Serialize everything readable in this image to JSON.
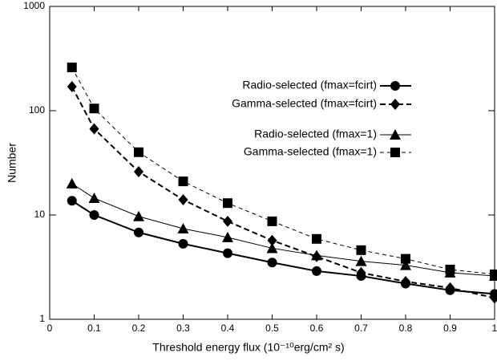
{
  "chart_data": {
    "type": "line",
    "x_label": "Threshold energy flux (10⁻¹⁰erg/cm² s)",
    "y_label": "Number",
    "x": [
      0.05,
      0.1,
      0.2,
      0.3,
      0.4,
      0.5,
      0.6,
      0.7,
      0.8,
      0.9,
      1
    ],
    "series": [
      {
        "name": "Radio-selected (fmax=fcirt)",
        "color": "#000000",
        "marker": "circle",
        "line_style": "solid",
        "line_width": 2,
        "values": [
          13.7,
          10,
          6.8,
          5.3,
          4.3,
          3.5,
          2.9,
          2.6,
          2.2,
          1.9,
          1.75
        ]
      },
      {
        "name": "Gamma-selected (fmax=fcirt)",
        "color": "#000000",
        "marker": "diamond",
        "line_style": "dashed",
        "line_width": 2,
        "values": [
          170,
          67,
          26,
          14,
          8.7,
          5.7,
          4.0,
          2.8,
          2.3,
          2.0,
          1.6
        ]
      },
      {
        "name": "Radio-selected (fmax=1)",
        "color": "#000000",
        "marker": "triangle",
        "line_style": "solid",
        "line_width": 1,
        "values": [
          20,
          14.5,
          9.7,
          7.4,
          6.1,
          4.8,
          4.1,
          3.6,
          3.3,
          2.8,
          2.6
        ]
      },
      {
        "name": "Gamma-selected (fmax=1)",
        "color": "#000000",
        "marker": "square",
        "line_style": "dashed",
        "line_width": 1,
        "values": [
          260,
          105,
          40,
          21,
          13,
          8.7,
          5.9,
          4.6,
          3.8,
          3.0,
          2.7
        ]
      }
    ],
    "xlim": [
      0,
      1
    ],
    "ylim": [
      1,
      1000
    ],
    "xticks": [
      0,
      0.1,
      0.2,
      0.3,
      0.4,
      0.5,
      0.6,
      0.7,
      0.8,
      0.9,
      1
    ],
    "yticks": [
      1,
      10,
      100,
      1000
    ],
    "y_scale": "log",
    "grid": false,
    "legend": "upper right"
  }
}
